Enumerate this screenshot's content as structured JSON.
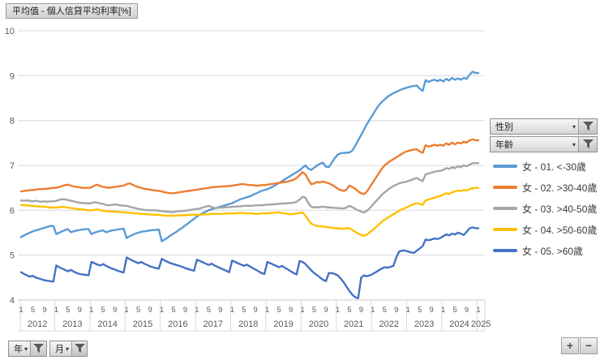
{
  "title": "平均值 - 個人信貸平均利率[%]",
  "filters": {
    "gender_label": "性別",
    "age_label": "年齡",
    "year_label": "年",
    "month_label": "月"
  },
  "icons": {
    "caret": "▾"
  },
  "zoom_controls": {
    "zoom_in": "+",
    "zoom_out": "−"
  },
  "legend": [
    {
      "label": "女 - 01. <-30歲",
      "color": "#5B9BD5"
    },
    {
      "label": "女 - 02. >30-40歲",
      "color": "#ED7D31"
    },
    {
      "label": "女 - 03. >40-50歲",
      "color": "#A5A5A5"
    },
    {
      "label": "女 - 04. >50-60歲",
      "color": "#FFC000"
    },
    {
      "label": "女 - 05. >60歲",
      "color": "#4472C4"
    }
  ],
  "chart_data": {
    "type": "line",
    "title": "平均值 - 個人信貸平均利率[%]",
    "xlabel": "",
    "ylabel": "",
    "ylim": [
      4,
      10
    ],
    "y_ticks": [
      4,
      5,
      6,
      7,
      8,
      9,
      10
    ],
    "grid": true,
    "legend_position": "right",
    "x_start": "2012-01",
    "x_end": "2025-01",
    "x_years": [
      {
        "year": "2012",
        "month_ticks": [
          1,
          5,
          9
        ]
      },
      {
        "year": "2013",
        "month_ticks": [
          1,
          5,
          9
        ]
      },
      {
        "year": "2014",
        "month_ticks": [
          1,
          5,
          9
        ]
      },
      {
        "year": "2015",
        "month_ticks": [
          1,
          5,
          9
        ]
      },
      {
        "year": "2016",
        "month_ticks": [
          1,
          5,
          9
        ]
      },
      {
        "year": "2017",
        "month_ticks": [
          1,
          5,
          9
        ]
      },
      {
        "year": "2018",
        "month_ticks": [
          1,
          5,
          9
        ]
      },
      {
        "year": "2019",
        "month_ticks": [
          1,
          5,
          9
        ]
      },
      {
        "year": "2020",
        "month_ticks": [
          1,
          5,
          9
        ]
      },
      {
        "year": "2021",
        "month_ticks": [
          1,
          5,
          9
        ]
      },
      {
        "year": "2022",
        "month_ticks": [
          1,
          5,
          9
        ]
      },
      {
        "year": "2023",
        "month_ticks": [
          1,
          5,
          9
        ]
      },
      {
        "year": "2024",
        "month_ticks": [
          1,
          5,
          9
        ]
      },
      {
        "year": "2025",
        "month_ticks": [
          1
        ]
      }
    ],
    "series": [
      {
        "name": "女 - 01. <-30歲",
        "color": "#5B9BD5",
        "values": [
          5.4,
          5.44,
          5.47,
          5.5,
          5.53,
          5.55,
          5.57,
          5.59,
          5.61,
          5.63,
          5.65,
          5.65,
          5.47,
          5.5,
          5.53,
          5.56,
          5.58,
          5.51,
          5.53,
          5.55,
          5.56,
          5.57,
          5.58,
          5.58,
          5.47,
          5.5,
          5.52,
          5.54,
          5.55,
          5.51,
          5.53,
          5.55,
          5.56,
          5.57,
          5.58,
          5.59,
          5.38,
          5.42,
          5.45,
          5.48,
          5.5,
          5.52,
          5.53,
          5.54,
          5.55,
          5.56,
          5.56,
          5.57,
          5.31,
          5.35,
          5.39,
          5.44,
          5.48,
          5.52,
          5.57,
          5.61,
          5.66,
          5.71,
          5.76,
          5.81,
          5.86,
          5.9,
          5.94,
          5.97,
          6.0,
          6.02,
          6.04,
          6.06,
          6.08,
          6.1,
          6.12,
          6.14,
          6.16,
          6.19,
          6.22,
          6.25,
          6.27,
          6.29,
          6.31,
          6.34,
          6.37,
          6.4,
          6.43,
          6.45,
          6.47,
          6.5,
          6.53,
          6.57,
          6.61,
          6.65,
          6.69,
          6.73,
          6.77,
          6.81,
          6.85,
          6.89,
          6.95,
          7.0,
          6.93,
          6.9,
          6.95,
          7.0,
          7.04,
          7.06,
          6.97,
          6.96,
          7.06,
          7.16,
          7.24,
          7.27,
          7.28,
          7.28,
          7.29,
          7.33,
          7.44,
          7.56,
          7.68,
          7.8,
          7.92,
          8.03,
          8.13,
          8.24,
          8.34,
          8.41,
          8.47,
          8.53,
          8.57,
          8.61,
          8.64,
          8.67,
          8.7,
          8.72,
          8.74,
          8.76,
          8.77,
          8.78,
          8.71,
          8.66,
          8.9,
          8.86,
          8.89,
          8.91,
          8.88,
          8.91,
          8.87,
          8.93,
          8.89,
          8.95,
          8.91,
          8.94,
          8.91,
          8.95,
          8.93,
          9.02,
          9.09,
          9.06,
          9.06
        ]
      },
      {
        "name": "女 - 02. >30-40歲",
        "color": "#ED7D31",
        "values": [
          6.42,
          6.43,
          6.44,
          6.45,
          6.45,
          6.46,
          6.47,
          6.47,
          6.48,
          6.48,
          6.49,
          6.5,
          6.5,
          6.52,
          6.54,
          6.56,
          6.57,
          6.55,
          6.53,
          6.52,
          6.51,
          6.5,
          6.5,
          6.5,
          6.51,
          6.55,
          6.57,
          6.54,
          6.52,
          6.51,
          6.5,
          6.51,
          6.52,
          6.53,
          6.54,
          6.55,
          6.58,
          6.6,
          6.57,
          6.54,
          6.52,
          6.5,
          6.48,
          6.47,
          6.46,
          6.45,
          6.44,
          6.43,
          6.42,
          6.4,
          6.39,
          6.38,
          6.38,
          6.39,
          6.4,
          6.41,
          6.42,
          6.43,
          6.44,
          6.45,
          6.46,
          6.47,
          6.48,
          6.49,
          6.5,
          6.51,
          6.52,
          6.52,
          6.53,
          6.53,
          6.54,
          6.54,
          6.55,
          6.56,
          6.57,
          6.58,
          6.58,
          6.57,
          6.56,
          6.56,
          6.55,
          6.55,
          6.56,
          6.56,
          6.57,
          6.58,
          6.59,
          6.6,
          6.61,
          6.62,
          6.63,
          6.64,
          6.66,
          6.68,
          6.72,
          6.78,
          6.85,
          6.8,
          6.68,
          6.58,
          6.6,
          6.63,
          6.62,
          6.64,
          6.62,
          6.6,
          6.57,
          6.53,
          6.48,
          6.45,
          6.43,
          6.46,
          6.55,
          6.52,
          6.48,
          6.42,
          6.38,
          6.36,
          6.42,
          6.52,
          6.62,
          6.72,
          6.82,
          6.92,
          7.0,
          7.05,
          7.1,
          7.14,
          7.18,
          7.22,
          7.26,
          7.3,
          7.32,
          7.34,
          7.35,
          7.36,
          7.31,
          7.28,
          7.45,
          7.42,
          7.44,
          7.46,
          7.44,
          7.46,
          7.44,
          7.49,
          7.46,
          7.51,
          7.47,
          7.51,
          7.49,
          7.53,
          7.51,
          7.56,
          7.58,
          7.56,
          7.56
        ]
      },
      {
        "name": "女 - 03. >40-50歲",
        "color": "#A5A5A5",
        "values": [
          6.22,
          6.21,
          6.22,
          6.21,
          6.2,
          6.21,
          6.2,
          6.19,
          6.2,
          6.19,
          6.2,
          6.2,
          6.21,
          6.23,
          6.25,
          6.24,
          6.23,
          6.21,
          6.2,
          6.18,
          6.17,
          6.16,
          6.16,
          6.15,
          6.16,
          6.18,
          6.17,
          6.15,
          6.14,
          6.12,
          6.11,
          6.12,
          6.13,
          6.12,
          6.11,
          6.1,
          6.1,
          6.08,
          6.06,
          6.05,
          6.03,
          6.02,
          6.01,
          6.0,
          6.0,
          6.0,
          6.0,
          5.99,
          5.98,
          5.97,
          5.97,
          5.96,
          5.96,
          5.97,
          5.98,
          5.98,
          5.99,
          6.0,
          6.01,
          6.02,
          6.03,
          6.04,
          6.06,
          6.08,
          6.1,
          6.07,
          6.05,
          6.05,
          6.06,
          6.06,
          6.07,
          6.07,
          6.08,
          6.08,
          6.09,
          6.09,
          6.1,
          6.1,
          6.1,
          6.1,
          6.11,
          6.11,
          6.11,
          6.12,
          6.12,
          6.13,
          6.13,
          6.14,
          6.14,
          6.15,
          6.15,
          6.16,
          6.16,
          6.17,
          6.19,
          6.24,
          6.3,
          6.28,
          6.16,
          6.08,
          6.06,
          6.07,
          6.07,
          6.08,
          6.07,
          6.06,
          6.06,
          6.05,
          6.05,
          6.04,
          6.04,
          6.06,
          6.1,
          6.07,
          6.03,
          6.0,
          5.97,
          5.95,
          5.99,
          6.05,
          6.12,
          6.2,
          6.27,
          6.34,
          6.4,
          6.45,
          6.5,
          6.54,
          6.57,
          6.6,
          6.62,
          6.63,
          6.65,
          6.67,
          6.7,
          6.72,
          6.68,
          6.65,
          6.8,
          6.82,
          6.84,
          6.86,
          6.87,
          6.88,
          6.9,
          6.94,
          6.92,
          6.96,
          6.94,
          6.98,
          6.96,
          7.0,
          6.98,
          7.02,
          7.05,
          7.05,
          7.05
        ]
      },
      {
        "name": "女 - 04. >50-60歲",
        "color": "#FFC000",
        "values": [
          6.12,
          6.11,
          6.11,
          6.1,
          6.1,
          6.09,
          6.09,
          6.08,
          6.08,
          6.07,
          6.06,
          6.06,
          6.06,
          6.07,
          6.08,
          6.07,
          6.06,
          6.05,
          6.04,
          6.03,
          6.02,
          6.02,
          6.01,
          6.0,
          6.0,
          6.01,
          6.02,
          6.0,
          5.99,
          5.98,
          5.98,
          5.97,
          5.97,
          5.96,
          5.96,
          5.95,
          5.95,
          5.94,
          5.94,
          5.93,
          5.93,
          5.92,
          5.92,
          5.91,
          5.91,
          5.9,
          5.9,
          5.9,
          5.89,
          5.88,
          5.88,
          5.88,
          5.88,
          5.88,
          5.89,
          5.89,
          5.89,
          5.9,
          5.9,
          5.9,
          5.9,
          5.9,
          5.91,
          5.91,
          5.91,
          5.92,
          5.92,
          5.92,
          5.92,
          5.92,
          5.93,
          5.93,
          5.93,
          5.93,
          5.94,
          5.94,
          5.94,
          5.93,
          5.93,
          5.93,
          5.92,
          5.92,
          5.93,
          5.93,
          5.93,
          5.94,
          5.94,
          5.95,
          5.95,
          5.94,
          5.93,
          5.92,
          5.91,
          5.92,
          5.93,
          5.94,
          5.95,
          5.88,
          5.78,
          5.7,
          5.67,
          5.65,
          5.64,
          5.64,
          5.63,
          5.62,
          5.61,
          5.6,
          5.6,
          5.59,
          5.59,
          5.6,
          5.6,
          5.56,
          5.52,
          5.48,
          5.45,
          5.43,
          5.46,
          5.51,
          5.56,
          5.62,
          5.68,
          5.74,
          5.79,
          5.83,
          5.87,
          5.91,
          5.95,
          5.99,
          6.02,
          6.05,
          6.08,
          6.11,
          6.14,
          6.16,
          6.14,
          6.12,
          6.22,
          6.24,
          6.26,
          6.28,
          6.3,
          6.32,
          6.35,
          6.38,
          6.36,
          6.4,
          6.42,
          6.44,
          6.43,
          6.45,
          6.44,
          6.47,
          6.49,
          6.5,
          6.5
        ]
      },
      {
        "name": "女 - 05. >60歲",
        "color": "#4472C4",
        "values": [
          4.62,
          4.58,
          4.55,
          4.52,
          4.54,
          4.5,
          4.48,
          4.46,
          4.44,
          4.43,
          4.42,
          4.41,
          4.77,
          4.73,
          4.7,
          4.67,
          4.64,
          4.67,
          4.63,
          4.6,
          4.58,
          4.57,
          4.56,
          4.55,
          4.85,
          4.82,
          4.79,
          4.77,
          4.8,
          4.76,
          4.73,
          4.7,
          4.68,
          4.65,
          4.63,
          4.61,
          4.95,
          4.91,
          4.88,
          4.85,
          4.82,
          4.85,
          4.81,
          4.78,
          4.75,
          4.73,
          4.71,
          4.7,
          4.92,
          4.88,
          4.85,
          4.82,
          4.8,
          4.78,
          4.76,
          4.74,
          4.71,
          4.69,
          4.67,
          4.65,
          4.9,
          4.87,
          4.84,
          4.81,
          4.78,
          4.81,
          4.77,
          4.74,
          4.71,
          4.68,
          4.65,
          4.62,
          4.88,
          4.85,
          4.82,
          4.79,
          4.76,
          4.79,
          4.75,
          4.71,
          4.68,
          4.64,
          4.6,
          4.58,
          4.85,
          4.82,
          4.79,
          4.76,
          4.73,
          4.76,
          4.72,
          4.68,
          4.64,
          4.6,
          4.57,
          4.87,
          4.85,
          4.8,
          4.73,
          4.66,
          4.6,
          4.55,
          4.5,
          4.45,
          4.42,
          4.6,
          4.6,
          4.58,
          4.55,
          4.48,
          4.4,
          4.3,
          4.2,
          4.12,
          4.06,
          4.04,
          4.5,
          4.55,
          4.53,
          4.55,
          4.58,
          4.62,
          4.66,
          4.7,
          4.73,
          4.72,
          4.74,
          4.76,
          4.95,
          5.08,
          5.1,
          5.1,
          5.08,
          5.06,
          5.05,
          5.1,
          5.15,
          5.2,
          5.35,
          5.33,
          5.35,
          5.37,
          5.36,
          5.38,
          5.42,
          5.46,
          5.44,
          5.48,
          5.46,
          5.5,
          5.48,
          5.45,
          5.52,
          5.6,
          5.62,
          5.6,
          5.6
        ]
      }
    ]
  }
}
